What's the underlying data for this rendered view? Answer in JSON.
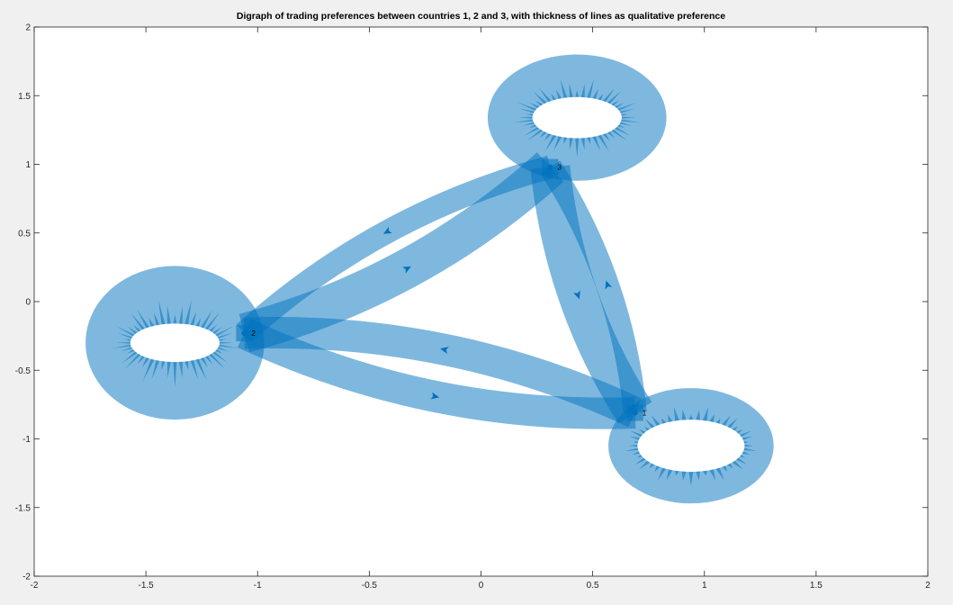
{
  "title": "Digraph of trading preferences between countries 1, 2 and 3, with thickness of lines as qualitative preference",
  "colors": {
    "figure_background": "#f0f0f0",
    "axes_background": "#ffffff",
    "edge": "#0072bd",
    "axis_line": "#262626"
  },
  "chart_data": {
    "type": "digraph",
    "title": "Digraph of trading preferences between countries 1, 2 and 3, with thickness of lines as qualitative preference",
    "xlim": [
      -2,
      2
    ],
    "ylim": [
      -2,
      2
    ],
    "xticks": [
      "-2",
      "-1.5",
      "-1",
      "-0.5",
      "0",
      "0.5",
      "1",
      "1.5",
      "2"
    ],
    "yticks": [
      "-2",
      "-1.5",
      "-1",
      "-0.5",
      "0",
      "0.5",
      "1",
      "1.5",
      "2"
    ],
    "grid": false,
    "nodes": [
      {
        "label": "1",
        "x": 0.69,
        "y": -0.81
      },
      {
        "label": "2",
        "x": -1.06,
        "y": -0.23
      },
      {
        "label": "3",
        "x": 0.31,
        "y": 0.98
      }
    ],
    "edges": [
      {
        "from": "1",
        "to": "1",
        "relative_weight": 3
      },
      {
        "from": "2",
        "to": "2",
        "relative_weight": 4
      },
      {
        "from": "3",
        "to": "3",
        "relative_weight": 4
      },
      {
        "from": "1",
        "to": "2",
        "relative_weight": 3
      },
      {
        "from": "2",
        "to": "1",
        "relative_weight": 3
      },
      {
        "from": "2",
        "to": "3",
        "relative_weight": 4
      },
      {
        "from": "3",
        "to": "2",
        "relative_weight": 2
      },
      {
        "from": "1",
        "to": "3",
        "relative_weight": 2
      },
      {
        "from": "3",
        "to": "1",
        "relative_weight": 4
      }
    ],
    "self_loops": [
      {
        "node": "1",
        "cx": 0.94,
        "cy": -1.05,
        "rx_outer": 0.37,
        "ry_outer": 0.42,
        "rx_inner": 0.24,
        "ry_inner": 0.19
      },
      {
        "node": "2",
        "cx": -1.37,
        "cy": -0.3,
        "rx_outer": 0.4,
        "ry_outer": 0.56,
        "rx_inner": 0.2,
        "ry_inner": 0.14
      },
      {
        "node": "3",
        "cx": 0.43,
        "cy": 1.34,
        "rx_outer": 0.4,
        "ry_outer": 0.46,
        "rx_inner": 0.2,
        "ry_inner": 0.15
      }
    ]
  }
}
